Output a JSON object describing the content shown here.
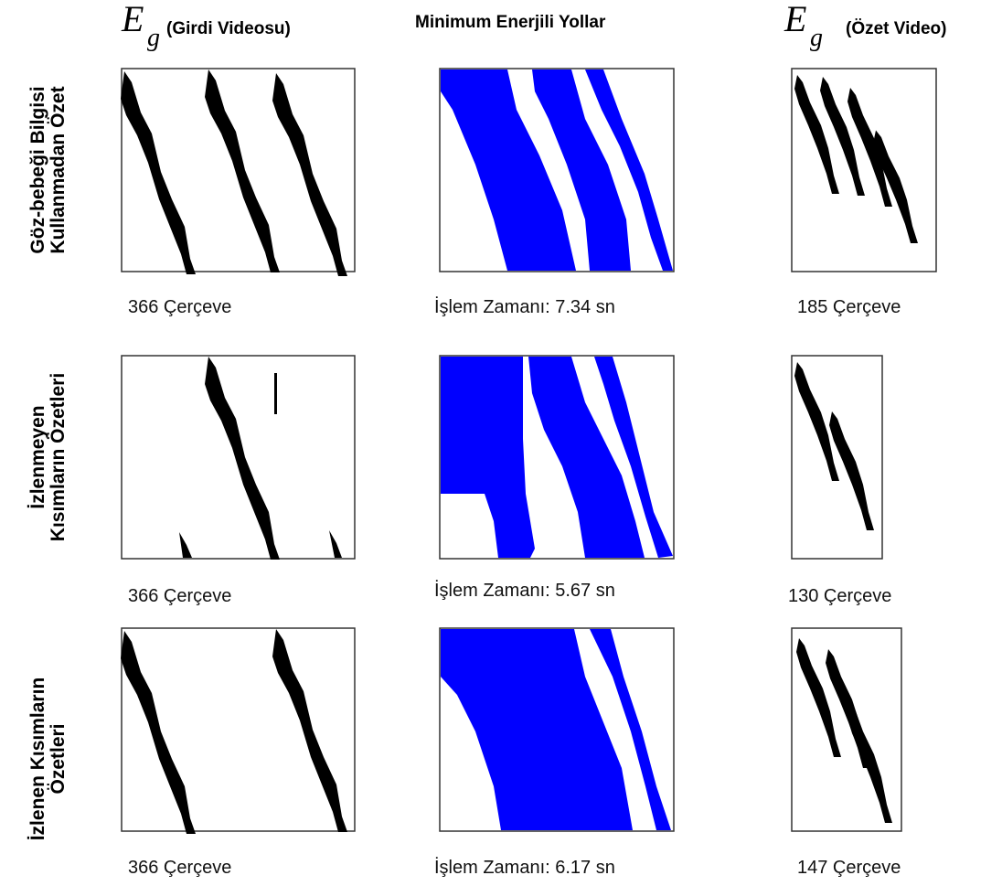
{
  "headers": [
    {
      "symbol": "E",
      "subscript": "g",
      "text": "(Girdi Videosu)"
    },
    {
      "text": "Minimum Enerjili Yollar"
    },
    {
      "symbol": "E",
      "subscript": "g",
      "text": "(Özet Video)"
    }
  ],
  "rows": [
    {
      "label_lines": [
        "Göz-bebeği Bilgisi",
        "Kullanmadan Özet"
      ],
      "captions": [
        "366 Çerçeve",
        "İşlem Zamanı:  7.34 sn",
        "185 Çerçeve"
      ]
    },
    {
      "label_lines": [
        "İzlenmeyen",
        "Kısımların Özetleri"
      ],
      "captions": [
        "366 Çerçeve",
        "İşlem Zamanı:  5.67 sn",
        "130 Çerçeve"
      ]
    },
    {
      "label_lines": [
        "İzlenen Kısımların",
        "Özetleri"
      ],
      "captions": [
        "366 Çerçeve",
        "İşlem Zamanı:  6.17 sn",
        "147 Çerçeve"
      ]
    }
  ]
}
